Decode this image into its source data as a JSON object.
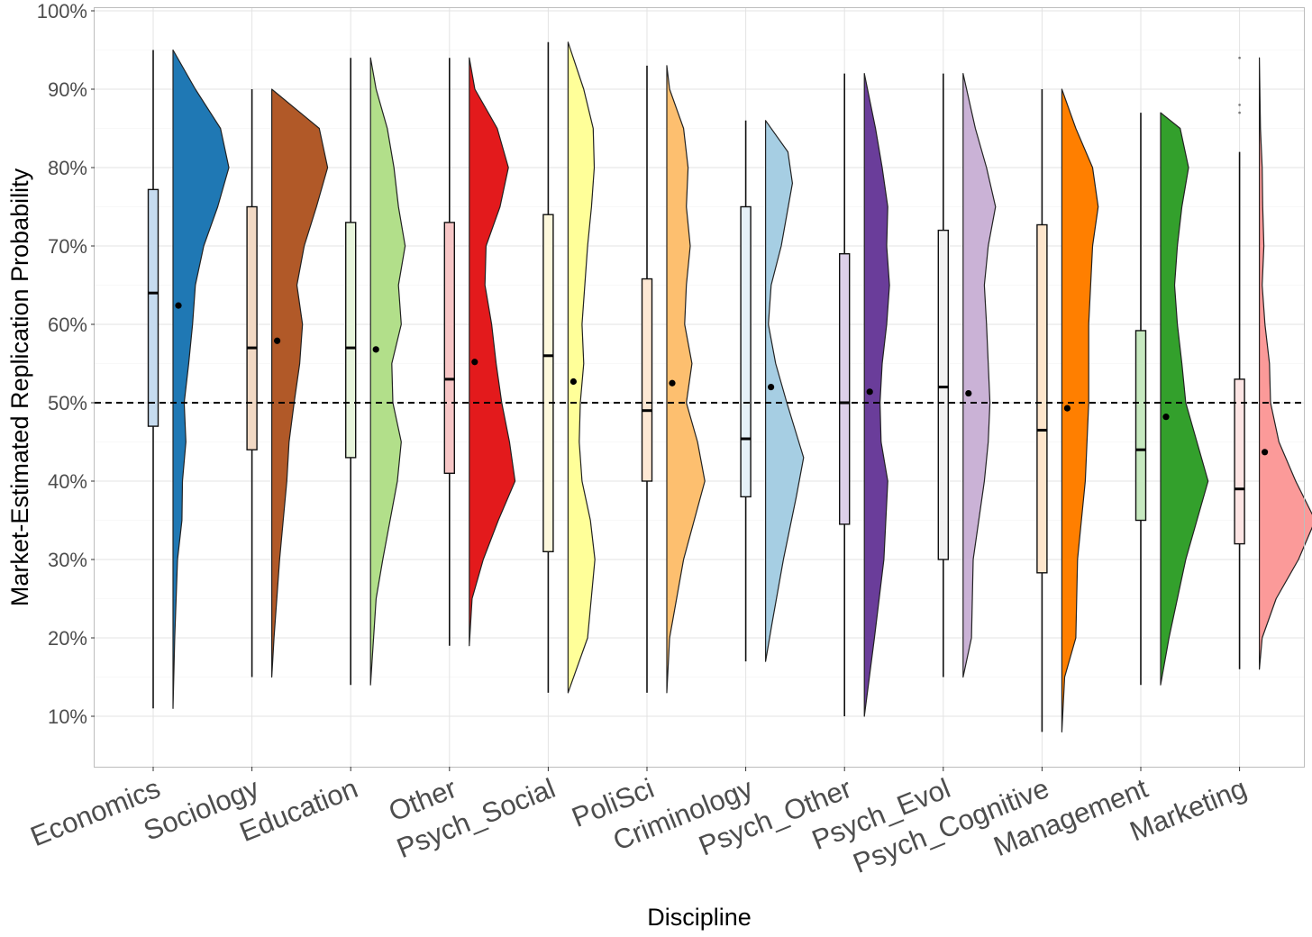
{
  "chart_data": {
    "type": "violin",
    "xlabel": "Discipline",
    "ylabel": "Market-Estimated Replication Probability",
    "ylim": [
      0.04,
      1.0
    ],
    "y_ticks": [
      0.1,
      0.2,
      0.3,
      0.4,
      0.5,
      0.6,
      0.7,
      0.8,
      0.9,
      1.0
    ],
    "y_tick_labels": [
      "10%",
      "20%",
      "30%",
      "40%",
      "50%",
      "60%",
      "70%",
      "80%",
      "90%",
      "100%"
    ],
    "reference_line": 0.5,
    "grid": true,
    "legend": "none",
    "series": [
      {
        "category": "Economics",
        "color": "#1f78b4",
        "box_color": "#c6dbef",
        "min": 0.11,
        "q1": 0.47,
        "median": 0.64,
        "q3": 0.772,
        "max": 0.95,
        "mean": 0.624,
        "density": [
          [
            0.11,
            0.0
          ],
          [
            0.2,
            0.03
          ],
          [
            0.3,
            0.08
          ],
          [
            0.35,
            0.16
          ],
          [
            0.4,
            0.17
          ],
          [
            0.45,
            0.23
          ],
          [
            0.5,
            0.2
          ],
          [
            0.55,
            0.28
          ],
          [
            0.6,
            0.35
          ],
          [
            0.65,
            0.4
          ],
          [
            0.7,
            0.55
          ],
          [
            0.75,
            0.8
          ],
          [
            0.8,
            1.0
          ],
          [
            0.85,
            0.85
          ],
          [
            0.9,
            0.4
          ],
          [
            0.95,
            0.0
          ]
        ]
      },
      {
        "category": "Sociology",
        "color": "#b15928",
        "box_color": "#f2d9c4",
        "min": 0.15,
        "q1": 0.44,
        "median": 0.57,
        "q3": 0.75,
        "max": 0.9,
        "mean": 0.579,
        "density": [
          [
            0.15,
            0.0
          ],
          [
            0.2,
            0.04
          ],
          [
            0.3,
            0.14
          ],
          [
            0.4,
            0.27
          ],
          [
            0.45,
            0.31
          ],
          [
            0.5,
            0.4
          ],
          [
            0.55,
            0.5
          ],
          [
            0.6,
            0.55
          ],
          [
            0.65,
            0.45
          ],
          [
            0.7,
            0.58
          ],
          [
            0.75,
            0.8
          ],
          [
            0.8,
            1.0
          ],
          [
            0.85,
            0.85
          ],
          [
            0.9,
            0.0
          ]
        ]
      },
      {
        "category": "Education",
        "color": "#b2df8a",
        "box_color": "#e8f5dc",
        "min": 0.14,
        "q1": 0.43,
        "median": 0.57,
        "q3": 0.73,
        "max": 0.94,
        "mean": 0.568,
        "density": [
          [
            0.14,
            0.0
          ],
          [
            0.25,
            0.1
          ],
          [
            0.3,
            0.22
          ],
          [
            0.35,
            0.35
          ],
          [
            0.4,
            0.48
          ],
          [
            0.45,
            0.55
          ],
          [
            0.5,
            0.4
          ],
          [
            0.55,
            0.38
          ],
          [
            0.6,
            0.55
          ],
          [
            0.65,
            0.5
          ],
          [
            0.7,
            0.62
          ],
          [
            0.75,
            0.5
          ],
          [
            0.8,
            0.42
          ],
          [
            0.85,
            0.3
          ],
          [
            0.9,
            0.1
          ],
          [
            0.94,
            0.0
          ]
        ]
      },
      {
        "category": "Other",
        "color": "#e31a1c",
        "box_color": "#f7c6c6",
        "min": 0.19,
        "q1": 0.41,
        "median": 0.53,
        "q3": 0.73,
        "max": 0.94,
        "mean": 0.552,
        "density": [
          [
            0.19,
            0.0
          ],
          [
            0.25,
            0.05
          ],
          [
            0.3,
            0.25
          ],
          [
            0.35,
            0.52
          ],
          [
            0.4,
            0.82
          ],
          [
            0.45,
            0.72
          ],
          [
            0.5,
            0.58
          ],
          [
            0.55,
            0.48
          ],
          [
            0.6,
            0.4
          ],
          [
            0.65,
            0.28
          ],
          [
            0.7,
            0.3
          ],
          [
            0.75,
            0.55
          ],
          [
            0.8,
            0.7
          ],
          [
            0.85,
            0.5
          ],
          [
            0.9,
            0.1
          ],
          [
            0.94,
            0.0
          ]
        ]
      },
      {
        "category": "Psych_Social",
        "color": "#ffff99",
        "box_color": "#fdf8dc",
        "min": 0.13,
        "q1": 0.31,
        "median": 0.56,
        "q3": 0.74,
        "max": 0.96,
        "mean": 0.527,
        "density": [
          [
            0.13,
            0.0
          ],
          [
            0.2,
            0.35
          ],
          [
            0.3,
            0.48
          ],
          [
            0.35,
            0.4
          ],
          [
            0.4,
            0.25
          ],
          [
            0.45,
            0.2
          ],
          [
            0.5,
            0.22
          ],
          [
            0.55,
            0.28
          ],
          [
            0.6,
            0.25
          ],
          [
            0.65,
            0.3
          ],
          [
            0.7,
            0.35
          ],
          [
            0.75,
            0.42
          ],
          [
            0.8,
            0.47
          ],
          [
            0.85,
            0.45
          ],
          [
            0.9,
            0.28
          ],
          [
            0.96,
            0.0
          ]
        ]
      },
      {
        "category": "PoliSci",
        "color": "#fdbf6f",
        "box_color": "#fde8d4",
        "min": 0.13,
        "q1": 0.4,
        "median": 0.49,
        "q3": 0.658,
        "max": 0.93,
        "mean": 0.525,
        "density": [
          [
            0.13,
            0.0
          ],
          [
            0.2,
            0.05
          ],
          [
            0.3,
            0.3
          ],
          [
            0.4,
            0.68
          ],
          [
            0.45,
            0.55
          ],
          [
            0.5,
            0.35
          ],
          [
            0.55,
            0.45
          ],
          [
            0.6,
            0.32
          ],
          [
            0.65,
            0.35
          ],
          [
            0.7,
            0.42
          ],
          [
            0.75,
            0.35
          ],
          [
            0.8,
            0.38
          ],
          [
            0.85,
            0.3
          ],
          [
            0.9,
            0.05
          ],
          [
            0.93,
            0.0
          ]
        ]
      },
      {
        "category": "Criminology",
        "color": "#a6cee3",
        "box_color": "#e6f1f8",
        "min": 0.17,
        "q1": 0.38,
        "median": 0.454,
        "q3": 0.75,
        "max": 0.86,
        "mean": 0.52,
        "density": [
          [
            0.17,
            0.0
          ],
          [
            0.22,
            0.12
          ],
          [
            0.3,
            0.32
          ],
          [
            0.38,
            0.55
          ],
          [
            0.43,
            0.68
          ],
          [
            0.5,
            0.38
          ],
          [
            0.55,
            0.18
          ],
          [
            0.6,
            0.05
          ],
          [
            0.65,
            0.1
          ],
          [
            0.7,
            0.28
          ],
          [
            0.78,
            0.48
          ],
          [
            0.82,
            0.4
          ],
          [
            0.86,
            0.0
          ]
        ]
      },
      {
        "category": "Psych_Other",
        "color": "#6a3d9a",
        "box_color": "#ddd0ea",
        "min": 0.1,
        "q1": 0.345,
        "median": 0.5,
        "q3": 0.69,
        "max": 0.92,
        "mean": 0.514,
        "density": [
          [
            0.1,
            0.0
          ],
          [
            0.2,
            0.18
          ],
          [
            0.3,
            0.35
          ],
          [
            0.4,
            0.42
          ],
          [
            0.45,
            0.3
          ],
          [
            0.5,
            0.28
          ],
          [
            0.55,
            0.32
          ],
          [
            0.6,
            0.4
          ],
          [
            0.65,
            0.45
          ],
          [
            0.7,
            0.4
          ],
          [
            0.75,
            0.42
          ],
          [
            0.8,
            0.32
          ],
          [
            0.85,
            0.2
          ],
          [
            0.92,
            0.0
          ]
        ]
      },
      {
        "category": "Psych_Evol",
        "color": "#cab2d6",
        "box_color": "#f2f2f2",
        "min": 0.15,
        "q1": 0.3,
        "median": 0.52,
        "q3": 0.72,
        "max": 0.92,
        "mean": 0.512,
        "density": [
          [
            0.15,
            0.0
          ],
          [
            0.2,
            0.15
          ],
          [
            0.3,
            0.18
          ],
          [
            0.35,
            0.28
          ],
          [
            0.4,
            0.38
          ],
          [
            0.45,
            0.45
          ],
          [
            0.5,
            0.48
          ],
          [
            0.55,
            0.45
          ],
          [
            0.6,
            0.42
          ],
          [
            0.65,
            0.38
          ],
          [
            0.7,
            0.45
          ],
          [
            0.75,
            0.58
          ],
          [
            0.8,
            0.42
          ],
          [
            0.85,
            0.22
          ],
          [
            0.92,
            0.0
          ]
        ]
      },
      {
        "category": "Psych_Cognitive",
        "color": "#ff7f00",
        "box_color": "#fee6cc",
        "min": 0.08,
        "q1": 0.283,
        "median": 0.465,
        "q3": 0.727,
        "max": 0.9,
        "mean": 0.493,
        "density": [
          [
            0.08,
            0.0
          ],
          [
            0.15,
            0.05
          ],
          [
            0.2,
            0.25
          ],
          [
            0.3,
            0.28
          ],
          [
            0.4,
            0.42
          ],
          [
            0.5,
            0.48
          ],
          [
            0.6,
            0.48
          ],
          [
            0.7,
            0.55
          ],
          [
            0.75,
            0.65
          ],
          [
            0.8,
            0.55
          ],
          [
            0.85,
            0.25
          ],
          [
            0.9,
            0.0
          ]
        ]
      },
      {
        "category": "Management",
        "color": "#33a02c",
        "box_color": "#c7e9c0",
        "min": 0.14,
        "q1": 0.35,
        "median": 0.44,
        "q3": 0.592,
        "max": 0.87,
        "mean": 0.482,
        "density": [
          [
            0.14,
            0.0
          ],
          [
            0.2,
            0.15
          ],
          [
            0.3,
            0.45
          ],
          [
            0.4,
            0.85
          ],
          [
            0.45,
            0.65
          ],
          [
            0.5,
            0.45
          ],
          [
            0.55,
            0.38
          ],
          [
            0.6,
            0.3
          ],
          [
            0.65,
            0.25
          ],
          [
            0.7,
            0.3
          ],
          [
            0.75,
            0.38
          ],
          [
            0.8,
            0.5
          ],
          [
            0.85,
            0.35
          ],
          [
            0.87,
            0.0
          ]
        ]
      },
      {
        "category": "Marketing",
        "color": "#fb9a99",
        "box_color": "#fde5e4",
        "min": 0.16,
        "q1": 0.32,
        "median": 0.39,
        "q3": 0.53,
        "max": 0.82,
        "mean": 0.437,
        "outliers": [
          0.94,
          0.88,
          0.87
        ],
        "density": [
          [
            0.16,
            0.0
          ],
          [
            0.2,
            0.05
          ],
          [
            0.25,
            0.3
          ],
          [
            0.3,
            0.7
          ],
          [
            0.35,
            1.0
          ],
          [
            0.4,
            0.65
          ],
          [
            0.45,
            0.35
          ],
          [
            0.5,
            0.2
          ],
          [
            0.55,
            0.18
          ],
          [
            0.6,
            0.1
          ],
          [
            0.65,
            0.05
          ],
          [
            0.7,
            0.08
          ],
          [
            0.75,
            0.06
          ],
          [
            0.8,
            0.05
          ],
          [
            0.85,
            0.02
          ],
          [
            0.94,
            0.0
          ]
        ]
      }
    ]
  }
}
